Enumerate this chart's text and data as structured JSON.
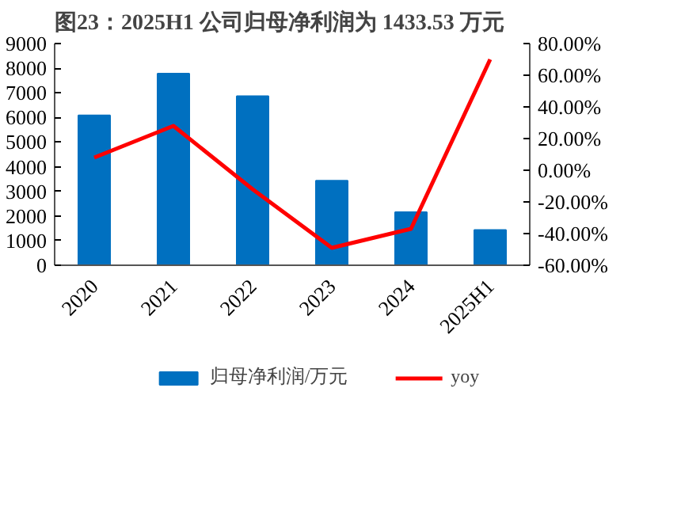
{
  "chart_data": {
    "type": "bar",
    "title": "图23：2025H1 公司归母净利润为 1433.53 万元",
    "categories": [
      "2020",
      "2021",
      "2022",
      "2023",
      "2024",
      "2025H1"
    ],
    "series": [
      {
        "name": "归母净利润/万元",
        "color": "#0070c0",
        "values": [
          6080,
          7780,
          6860,
          3430,
          2150,
          1430
        ]
      },
      {
        "name": "yoy",
        "type": "line",
        "axis": "y2",
        "color": "#ff0000",
        "values": [
          8,
          28,
          -12,
          -49,
          -37,
          70
        ]
      }
    ],
    "ylim": [
      0,
      9000
    ],
    "yticks": [
      0,
      1000,
      2000,
      3000,
      4000,
      5000,
      6000,
      7000,
      8000,
      9000
    ],
    "y2lim": [
      -60,
      80
    ],
    "y2ticks": [
      {
        "value": -60,
        "label": "-60.00%"
      },
      {
        "value": -40,
        "label": "-40.00%"
      },
      {
        "value": -20,
        "label": "-20.00%"
      },
      {
        "value": 0,
        "label": "0.00%"
      },
      {
        "value": 20,
        "label": "20.00%"
      },
      {
        "value": 40,
        "label": "40.00%"
      },
      {
        "value": 60,
        "label": "60.00%"
      },
      {
        "value": 80,
        "label": "80.00%"
      }
    ],
    "grid": false,
    "legend": "bottom"
  }
}
